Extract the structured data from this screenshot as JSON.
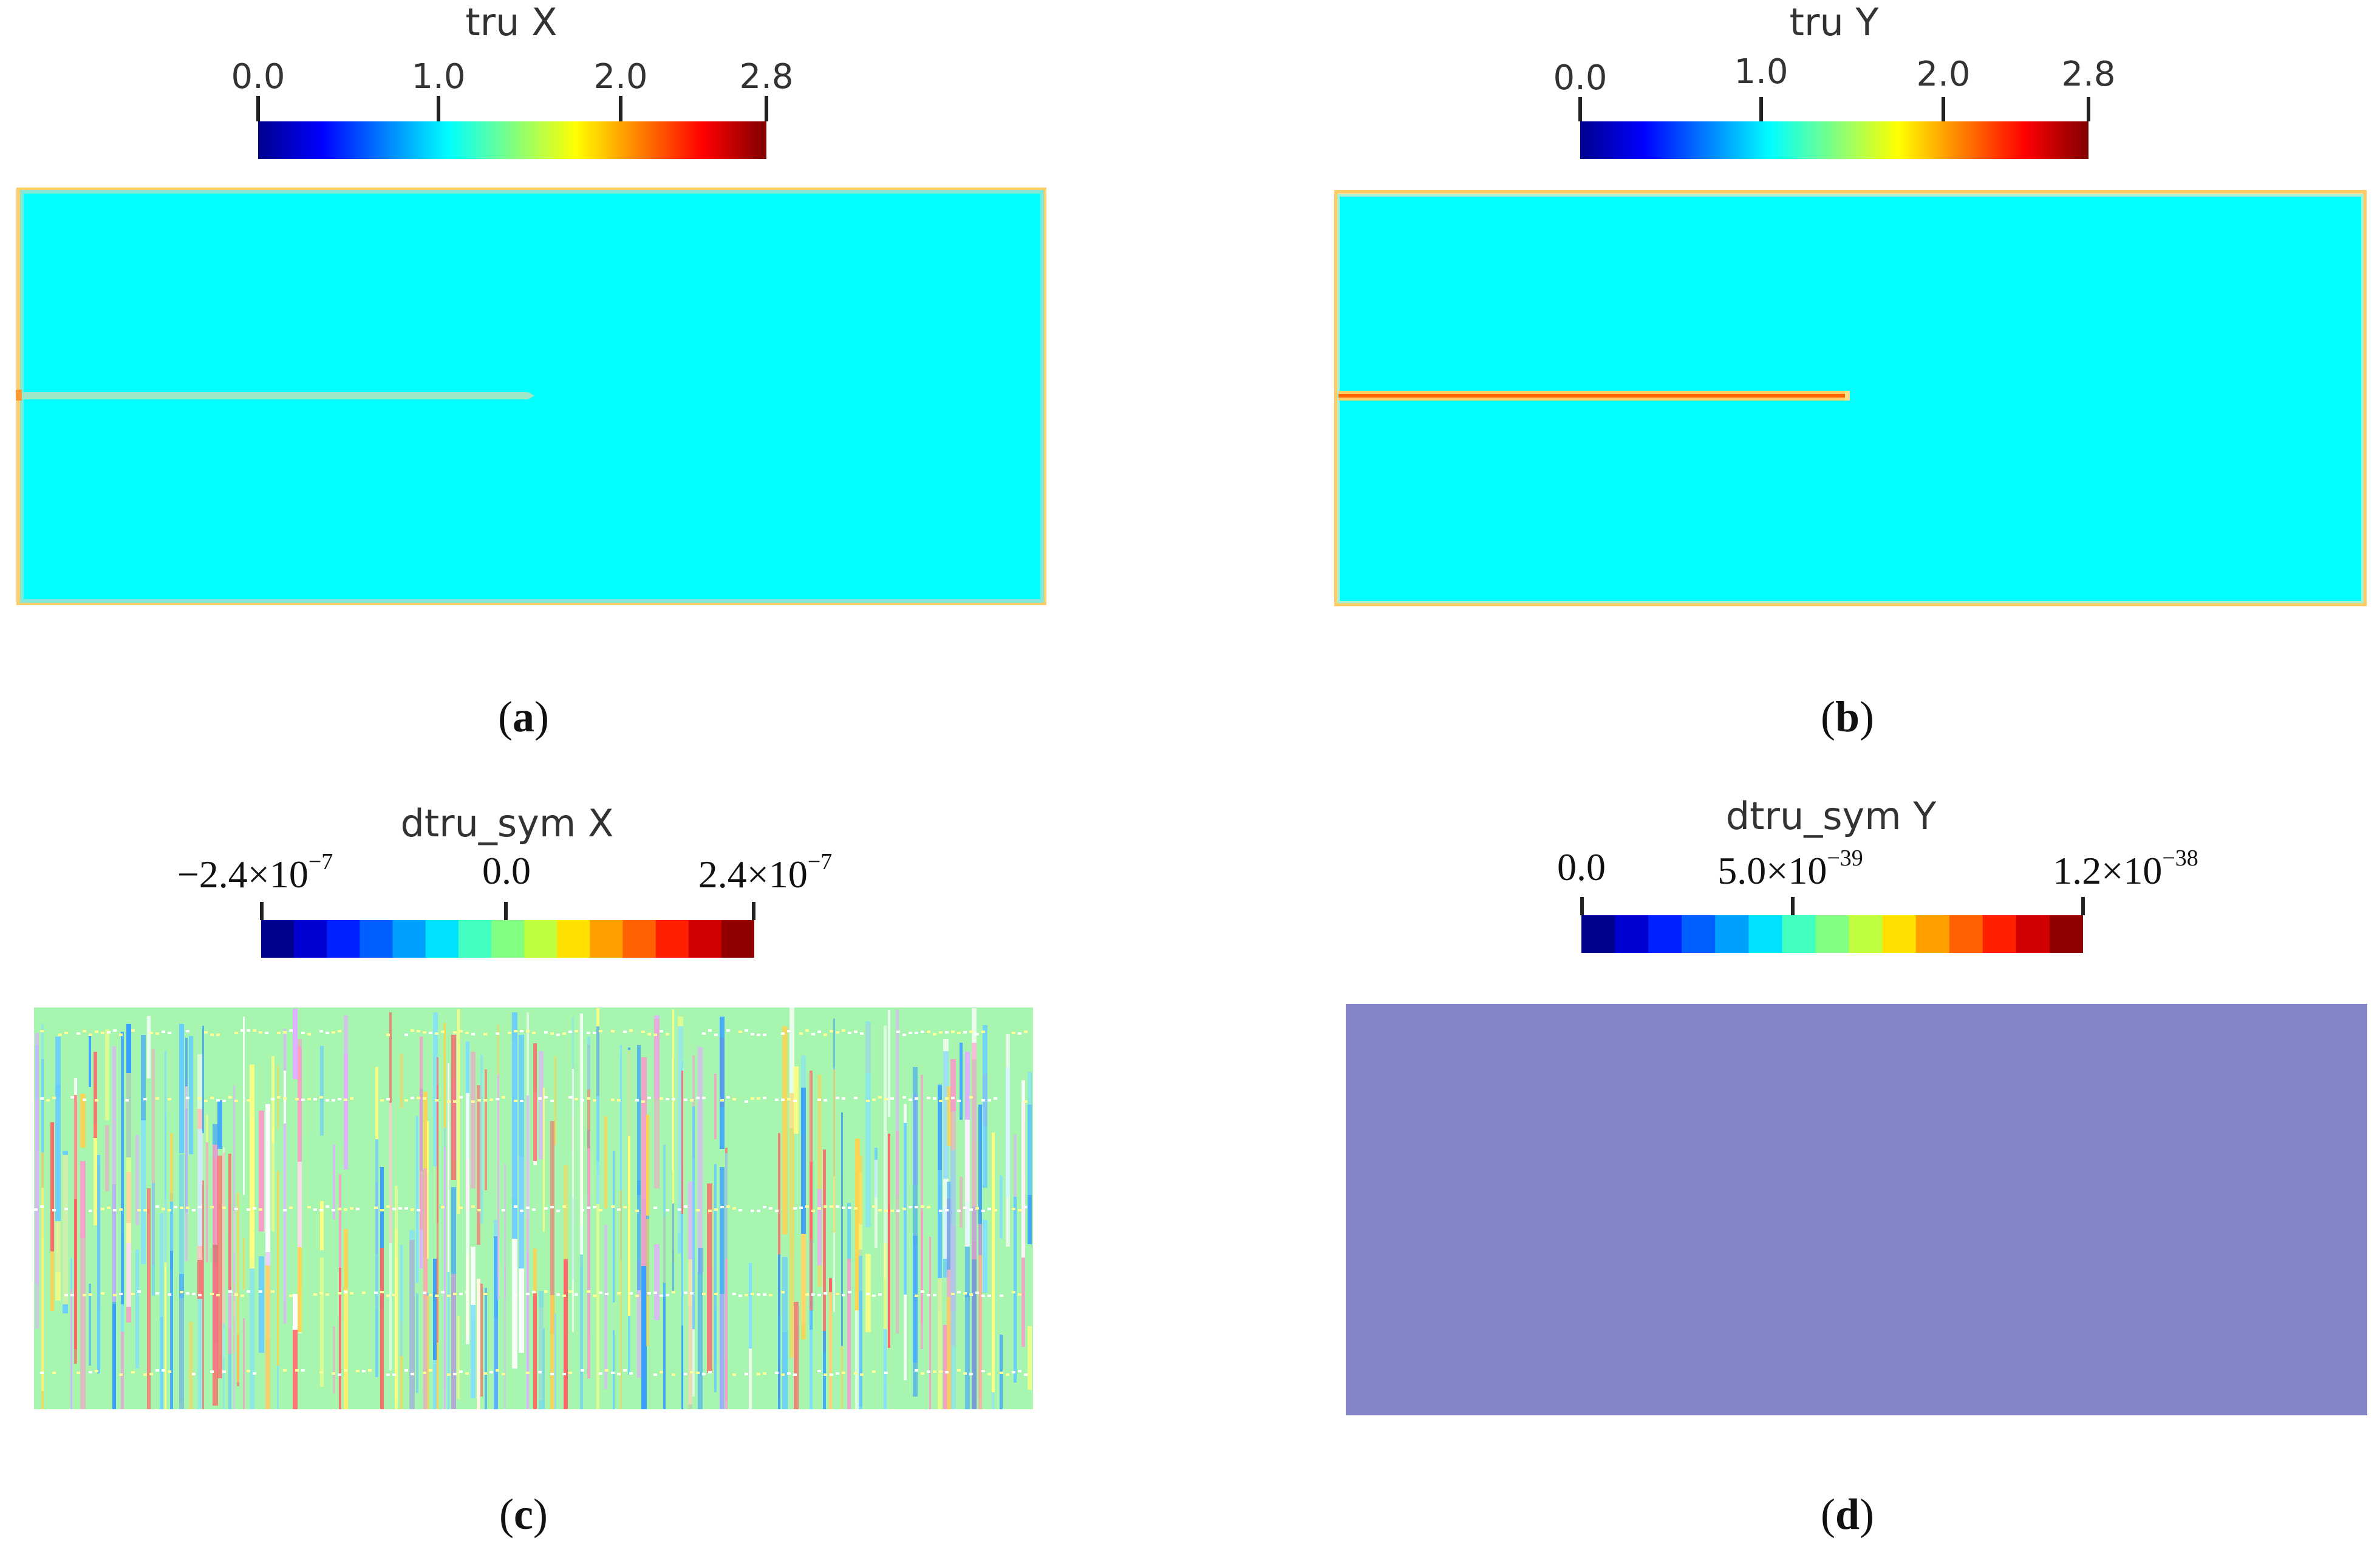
{
  "panels": {
    "a": {
      "caption_letter": "a",
      "colorbar_title": "tru X",
      "ticks": [
        "0.0",
        "1.0",
        "2.0",
        "2.8"
      ]
    },
    "b": {
      "caption_letter": "b",
      "colorbar_title": "tru Y",
      "ticks": [
        "0.0",
        "1.0",
        "2.0",
        "2.8"
      ]
    },
    "c": {
      "caption_letter": "c",
      "colorbar_title": "dtru_sym X",
      "ticks": [
        {
          "mant": "−2.4×10",
          "exp": "−7"
        },
        {
          "mant": "0.0",
          "exp": ""
        },
        {
          "mant": "2.4×10",
          "exp": "−7"
        }
      ]
    },
    "d": {
      "caption_letter": "d",
      "colorbar_title": "dtru_sym Y",
      "ticks": [
        {
          "mant": "0.0",
          "exp": ""
        },
        {
          "mant": "5.0×10",
          "exp": "−39"
        },
        {
          "mant": "1.2×10",
          "exp": "−38"
        }
      ]
    }
  },
  "colors": {
    "field_cyan": "#00ffff",
    "field_green": "#a8f5b0",
    "field_purple": "#8383c8",
    "edge_orange": "#ffcc66",
    "crack_a": "#9ee8c8",
    "crack_b": "#ff9933"
  }
}
